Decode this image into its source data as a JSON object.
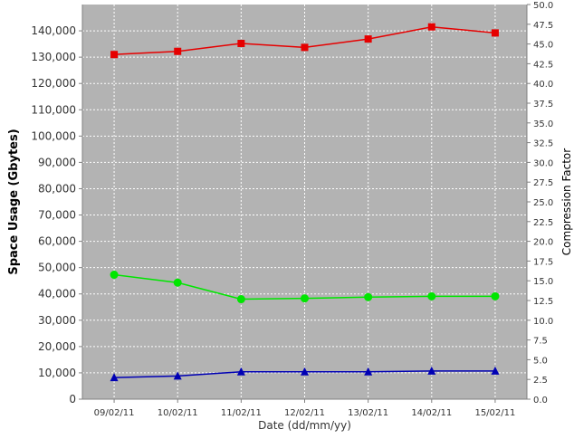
{
  "chart_data": {
    "type": "line",
    "title": "",
    "xlabel": "Date (dd/mm/yy)",
    "ylabel": "Space Usage (Gbytes)",
    "y2label": "Compression Factor",
    "categories": [
      "09/02/11",
      "10/02/11",
      "11/02/11",
      "12/02/11",
      "13/02/11",
      "14/02/11",
      "15/02/11"
    ],
    "ylim": [
      0,
      150000
    ],
    "y2lim": [
      0,
      50
    ],
    "yticks": [
      "0",
      "10,000",
      "20,000",
      "30,000",
      "40,000",
      "50,000",
      "60,000",
      "70,000",
      "80,000",
      "90,000",
      "100,000",
      "110,000",
      "120,000",
      "130,000",
      "140,000"
    ],
    "y2ticks": [
      "0.0",
      "2.5",
      "5.0",
      "7.5",
      "10.0",
      "12.5",
      "15.0",
      "17.5",
      "20.0",
      "22.5",
      "25.0",
      "27.5",
      "30.0",
      "32.5",
      "35.0",
      "37.5",
      "40.0",
      "42.5",
      "45.0",
      "47.5",
      "50.0"
    ],
    "grid": true,
    "background": "#b3b3b3",
    "series": [
      {
        "color": "#e60000",
        "marker": "square",
        "axis": "left",
        "values": [
          131000,
          132200,
          135200,
          133700,
          136900,
          141500,
          139200
        ]
      },
      {
        "color": "#00e600",
        "marker": "circle",
        "axis": "left",
        "values": [
          47300,
          44300,
          38000,
          38300,
          38800,
          39100,
          39100
        ]
      },
      {
        "color": "#0000b4",
        "marker": "triangle",
        "axis": "left",
        "values": [
          8200,
          8800,
          10400,
          10400,
          10400,
          10700,
          10700
        ]
      }
    ]
  }
}
